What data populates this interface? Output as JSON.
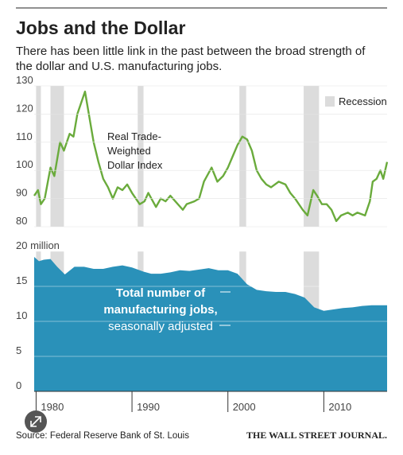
{
  "title": "Jobs and the Dollar",
  "subtitle": [
    "There has been little link in the past between the broad strength of",
    "the dollar and U.S. manufacturing jobs."
  ],
  "source": "Source: Federal Reserve Bank of St. Louis",
  "publisher": "THE WALL STREET JOURNAL.",
  "recessions": {
    "label": "Recession",
    "color": "#dcdcdc",
    "spans": [
      [
        1980.0,
        1980.5
      ],
      [
        1981.5,
        1982.9
      ],
      [
        1990.6,
        1991.2
      ],
      [
        2001.2,
        2001.9
      ],
      [
        2007.9,
        2009.5
      ]
    ]
  },
  "chart_data": [
    {
      "type": "line",
      "color": "#6aab3c",
      "annotation": [
        "Real Trade-",
        "Weighted",
        "Dollar Index"
      ],
      "xlim": [
        1979.8,
        2016.6
      ],
      "ylim": [
        80,
        130
      ],
      "yticks": [
        80,
        90,
        100,
        110,
        120,
        130
      ],
      "x": [
        1979.8,
        1980.2,
        1980.5,
        1980.9,
        1981.5,
        1981.9,
        1982.5,
        1982.9,
        1983.5,
        1983.9,
        1984.3,
        1985.1,
        1985.5,
        1986.0,
        1986.5,
        1987.0,
        1987.5,
        1988.0,
        1988.5,
        1989.0,
        1989.5,
        1990.0,
        1990.8,
        1991.3,
        1991.7,
        1992.5,
        1993.0,
        1993.5,
        1994.0,
        1995.3,
        1995.7,
        1996.5,
        1997.0,
        1997.5,
        1998.3,
        1998.9,
        1999.5,
        2000.0,
        2000.5,
        2001.0,
        2001.5,
        2002.0,
        2002.5,
        2003.0,
        2003.5,
        2004.0,
        2004.5,
        2005.3,
        2006.0,
        2006.5,
        2007.0,
        2007.8,
        2008.3,
        2008.9,
        2009.3,
        2009.8,
        2010.3,
        2010.8,
        2011.3,
        2011.8,
        2012.5,
        2013.0,
        2013.5,
        2014.3,
        2014.8,
        2015.1,
        2015.5,
        2015.9,
        2016.2,
        2016.6
      ],
      "values": [
        91,
        93,
        88,
        90,
        101,
        98,
        110,
        107,
        113,
        112,
        120,
        128,
        120,
        110,
        103,
        97,
        94,
        90,
        94,
        93,
        95,
        92,
        88,
        89,
        92,
        87,
        90,
        89,
        91,
        86,
        88,
        89,
        90,
        96,
        101,
        96,
        98,
        101,
        105,
        109,
        112,
        111,
        107,
        100,
        97,
        95,
        94,
        96,
        95,
        92,
        90,
        86,
        84,
        93,
        91,
        88,
        88,
        86,
        82,
        84,
        85,
        84,
        85,
        84,
        89,
        96,
        97,
        100,
        97,
        103
      ]
    },
    {
      "type": "area",
      "color": "#2a91b9",
      "annotation": [
        "Total number of",
        "manufacturing jobs,",
        "seasonally adjusted"
      ],
      "xlim": [
        1979.8,
        2016.6
      ],
      "xticks": [
        1980,
        1990,
        2000,
        2010
      ],
      "ylim": [
        0,
        20
      ],
      "yticks": [
        0,
        5,
        10,
        15,
        {
          "value": 20,
          "label": "20 million"
        }
      ],
      "x": [
        1979.8,
        1980.3,
        1980.8,
        1981.5,
        1982.2,
        1983.0,
        1984.0,
        1985.0,
        1986.0,
        1987.0,
        1988.0,
        1989.0,
        1990.0,
        1991.2,
        1992.0,
        1993.0,
        1994.0,
        1995.0,
        1996.0,
        1997.0,
        1998.0,
        1999.0,
        2000.0,
        2001.0,
        2002.0,
        2003.0,
        2004.0,
        2005.0,
        2006.0,
        2007.0,
        2008.0,
        2009.0,
        2010.0,
        2011.0,
        2012.0,
        2013.0,
        2014.0,
        2015.0,
        2016.6
      ],
      "values": [
        19.2,
        18.6,
        18.8,
        18.9,
        17.8,
        16.7,
        17.8,
        17.8,
        17.5,
        17.5,
        17.8,
        18.0,
        17.7,
        17.1,
        16.8,
        16.8,
        17.0,
        17.3,
        17.2,
        17.4,
        17.6,
        17.3,
        17.3,
        16.8,
        15.3,
        14.5,
        14.3,
        14.2,
        14.2,
        13.9,
        13.4,
        12.0,
        11.5,
        11.7,
        11.9,
        12.0,
        12.2,
        12.3,
        12.3
      ]
    }
  ]
}
